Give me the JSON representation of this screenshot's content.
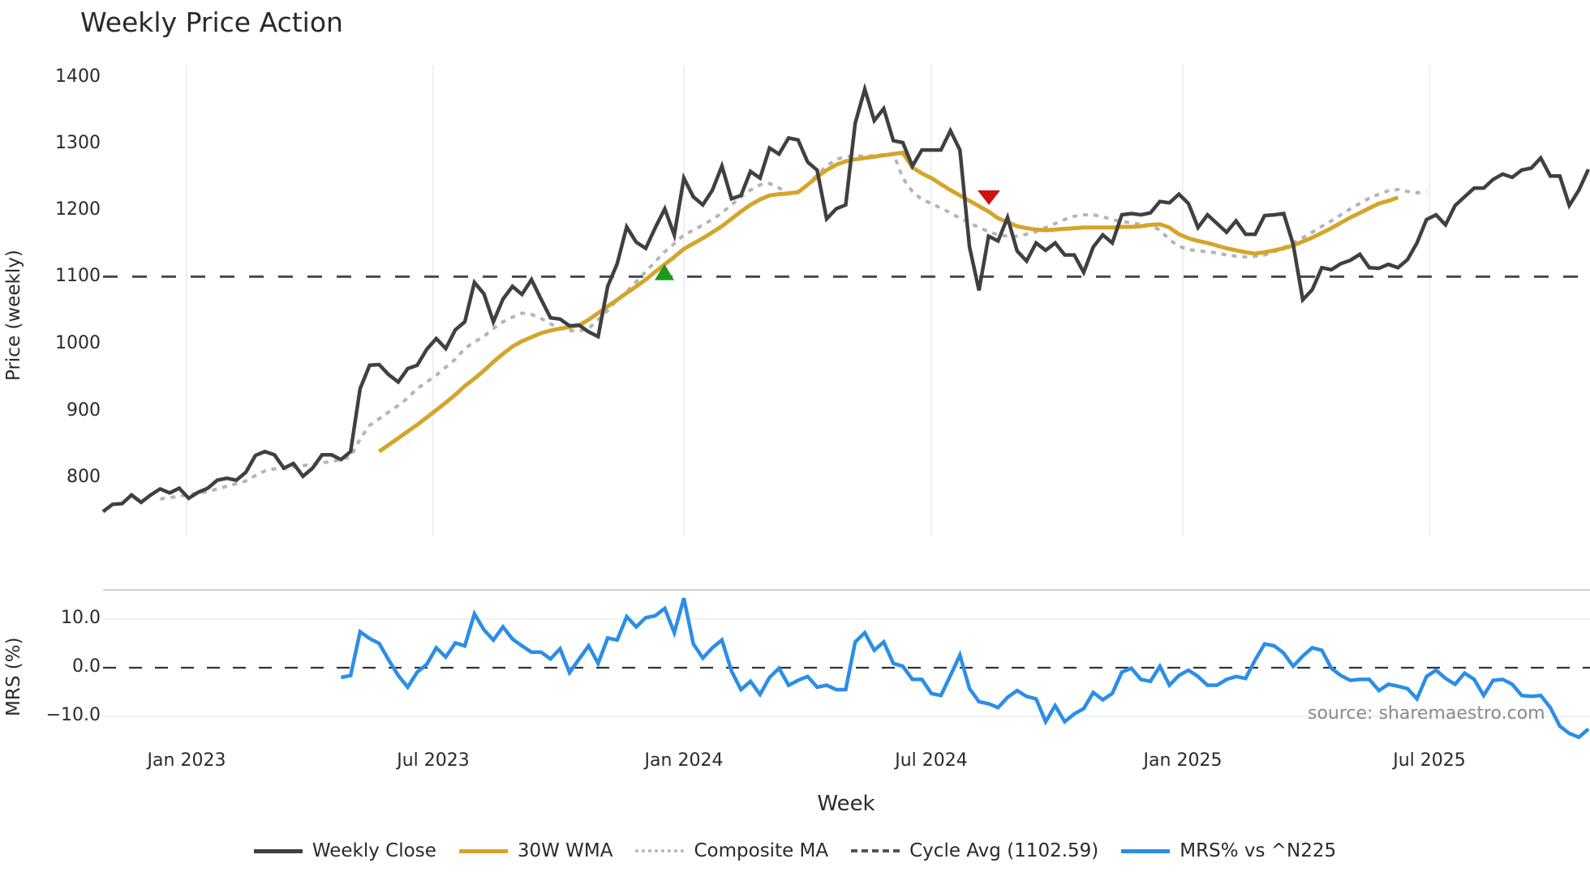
{
  "title": "Weekly Price Action",
  "price_panel": {
    "ylabel": "Price (weekly)",
    "y_ticks": [
      "1400",
      "1300",
      "1200",
      "1100",
      "1000",
      "900",
      "800"
    ]
  },
  "mrs_panel": {
    "ylabel": "MRS (%)",
    "y_ticks": [
      "10.0",
      "0.0",
      "−10.0"
    ]
  },
  "x_axis": {
    "label": "Week",
    "ticks": [
      "Jan 2023",
      "Jul 2023",
      "Jan 2024",
      "Jul 2024",
      "Jan 2025",
      "Jul 2025"
    ]
  },
  "source_note": "source: sharemaestro.com",
  "legend": [
    {
      "label": "Weekly Close",
      "color": "#404040",
      "style": "solid"
    },
    {
      "label": "30W WMA",
      "color": "#d4a52a",
      "style": "solid"
    },
    {
      "label": "Composite MA",
      "color": "#b5b5b5",
      "style": "dotted"
    },
    {
      "label": "Cycle Avg (1102.59)",
      "color": "#555555",
      "style": "dashed"
    },
    {
      "label": "MRS% vs ^N225",
      "color": "#2b8ee6",
      "style": "solid"
    }
  ],
  "colors": {
    "close": "#404040",
    "wma": "#d4a52a",
    "composite": "#b5b5b5",
    "cycle": "#4a4a4a",
    "mrs": "#2b8ee6",
    "buy_marker": "#1a9a1a",
    "sell_marker": "#cc1111",
    "grid": "#e8ecf0"
  },
  "chart_data": [
    {
      "type": "line",
      "title": "Weekly Price Action",
      "xlabel": "Week",
      "ylabel": "Price (weekly)",
      "ylim": [
        720,
        1420
      ],
      "x_range": [
        "2022-10",
        "2025-10"
      ],
      "x_ticks": [
        "Jan 2023",
        "Jul 2023",
        "Jan 2024",
        "Jul 2024",
        "Jan 2025",
        "Jul 2025"
      ],
      "y_ticks": [
        800,
        900,
        1000,
        1100,
        1200,
        1300,
        1400
      ],
      "grid": "vertical",
      "legend_position": "bottom",
      "series": [
        {
          "name": "Weekly Close",
          "values": [
            751,
            762,
            763,
            776,
            765,
            776,
            785,
            779,
            786,
            771,
            780,
            786,
            798,
            801,
            798,
            810,
            835,
            841,
            836,
            816,
            823,
            804,
            816,
            836,
            836,
            829,
            841,
            935,
            970,
            971,
            956,
            945,
            965,
            970,
            994,
            1010,
            995,
            1023,
            1035,
            1094,
            1077,
            1035,
            1069,
            1088,
            1076,
            1098,
            1069,
            1041,
            1039,
            1029,
            1030,
            1020,
            1013,
            1088,
            1122,
            1177,
            1154,
            1145,
            1176,
            1204,
            1165,
            1250,
            1222,
            1210,
            1232,
            1268,
            1219,
            1224,
            1260,
            1250,
            1295,
            1286,
            1310,
            1307,
            1274,
            1262,
            1189,
            1204,
            1210,
            1332,
            1383,
            1336,
            1354,
            1306,
            1303,
            1268,
            1292,
            1292,
            1292,
            1321,
            1292,
            1147,
            1082,
            1163,
            1156,
            1191,
            1141,
            1126,
            1153,
            1142,
            1153,
            1135,
            1135,
            1109,
            1147,
            1165,
            1153,
            1195,
            1197,
            1195,
            1198,
            1215,
            1213,
            1226,
            1212,
            1176,
            1195,
            1182,
            1169,
            1186,
            1166,
            1166,
            1194,
            1195,
            1197,
            1151,
            1068,
            1083,
            1116,
            1113,
            1122,
            1127,
            1136,
            1116,
            1115,
            1121,
            1116,
            1128,
            1153,
            1188,
            1195,
            1180,
            1209,
            1222,
            1235,
            1235,
            1248,
            1256,
            1251,
            1262,
            1265,
            1280,
            1253,
            1253,
            1209,
            1232,
            1263
          ]
        },
        {
          "name": "30W WMA",
          "start_index": 29,
          "values": [
            841,
            851,
            861,
            871,
            881,
            892,
            903,
            914,
            926,
            939,
            950,
            962,
            975,
            987,
            998,
            1006,
            1012,
            1018,
            1022,
            1025,
            1027,
            1030,
            1038,
            1048,
            1058,
            1068,
            1078,
            1088,
            1098,
            1110,
            1121,
            1132,
            1144,
            1152,
            1160,
            1169,
            1178,
            1189,
            1200,
            1210,
            1218,
            1224,
            1226,
            1227,
            1229,
            1240,
            1252,
            1262,
            1270,
            1275,
            1278,
            1280,
            1282,
            1284,
            1286,
            1288,
            1266,
            1257,
            1250,
            1241,
            1232,
            1224,
            1216,
            1208,
            1200,
            1190,
            1184,
            1178,
            1175,
            1173,
            1172,
            1173,
            1174,
            1175,
            1176,
            1176,
            1176,
            1176,
            1177,
            1177,
            1178,
            1180,
            1181,
            1176,
            1166,
            1160,
            1156,
            1153,
            1149,
            1145,
            1142,
            1139,
            1137,
            1139,
            1142,
            1145,
            1149,
            1155,
            1161,
            1168,
            1175,
            1183,
            1191,
            1198,
            1205,
            1212,
            1216,
            1221
          ]
        },
        {
          "name": "Composite MA",
          "start_index": 6,
          "values": [
            770,
            772,
            774,
            777,
            779,
            781,
            785,
            789,
            793,
            797,
            805,
            812,
            815,
            816,
            818,
            820,
            822,
            824,
            826,
            829,
            833,
            860,
            880,
            890,
            900,
            910,
            921,
            935,
            945,
            955,
            967,
            979,
            995,
            1005,
            1013,
            1025,
            1035,
            1042,
            1048,
            1046,
            1040,
            1032,
            1025,
            1022,
            1021,
            1025,
            1038,
            1052,
            1068,
            1080,
            1095,
            1110,
            1125,
            1140,
            1152,
            1165,
            1172,
            1180,
            1188,
            1198,
            1210,
            1222,
            1232,
            1240,
            1242,
            1235,
            1228,
            1228,
            1240,
            1255,
            1268,
            1278,
            1282,
            1283,
            1283,
            1283,
            1285,
            1287,
            1250,
            1230,
            1218,
            1212,
            1205,
            1198,
            1190,
            1183,
            1176,
            1170,
            1165,
            1163,
            1163,
            1166,
            1170,
            1176,
            1182,
            1188,
            1193,
            1195,
            1195,
            1192,
            1188,
            1185,
            1183,
            1181,
            1180,
            1172,
            1158,
            1148,
            1143,
            1141,
            1140,
            1138,
            1135,
            1133,
            1132,
            1133,
            1135,
            1140,
            1146,
            1153,
            1161,
            1169,
            1178,
            1186,
            1195,
            1204,
            1212,
            1220,
            1226,
            1231,
            1233,
            1230,
            1228,
            1230
          ]
        },
        {
          "name": "Cycle Avg (1102.59)",
          "values": [
            1102.59
          ]
        }
      ],
      "markers": [
        {
          "type": "buy",
          "shape": "triangle-up",
          "color": "#1a9a1a",
          "x_approx": "Dec 2023",
          "y": 1107
        },
        {
          "type": "sell",
          "shape": "triangle-down",
          "color": "#cc1111",
          "x_approx": "Aug 2024",
          "y": 1222
        }
      ]
    },
    {
      "type": "line",
      "title": "MRS% vs ^N225",
      "ylabel": "MRS (%)",
      "ylim": [
        -14,
        15
      ],
      "y_ticks": [
        -10,
        0,
        10
      ],
      "reference_line": 0,
      "series": [
        {
          "name": "MRS% vs ^N225",
          "start_index": 25,
          "values": [
            -2.0,
            -1.6,
            7.4,
            6.0,
            5.0,
            1.6,
            -1.6,
            -4.0,
            -0.9,
            0.7,
            4.1,
            2.2,
            5.1,
            4.5,
            11.1,
            7.8,
            5.7,
            8.4,
            5.9,
            4.5,
            3.2,
            3.2,
            1.8,
            3.9,
            -1.0,
            1.8,
            4.5,
            0.9,
            6.1,
            5.7,
            10.5,
            8.4,
            10.3,
            10.7,
            12.2,
            7.2,
            14.3,
            4.9,
            2.0,
            4.1,
            5.7,
            -0.7,
            -4.5,
            -2.8,
            -5.5,
            -2.0,
            -0.1,
            -3.6,
            -2.6,
            -1.8,
            -4.0,
            -3.6,
            -4.5,
            -4.5,
            5.3,
            7.2,
            3.6,
            5.3,
            0.9,
            0.3,
            -2.4,
            -2.4,
            -5.3,
            -5.7,
            -1.6,
            2.6,
            -4.3,
            -7.0,
            -7.4,
            -8.2,
            -6.1,
            -4.7,
            -5.9,
            -6.4,
            -11.1,
            -7.8,
            -11.1,
            -9.5,
            -8.4,
            -5.1,
            -6.6,
            -5.3,
            -0.9,
            -0.1,
            -2.4,
            -2.8,
            0.3,
            -3.6,
            -1.6,
            -0.5,
            -1.8,
            -3.6,
            -3.6,
            -2.4,
            -1.8,
            -2.2,
            1.6,
            4.9,
            4.5,
            3.0,
            0.3,
            2.4,
            4.1,
            3.6,
            -0.1,
            -1.6,
            -2.6,
            -2.4,
            -2.4,
            -4.7,
            -3.4,
            -3.8,
            -4.3,
            -6.4,
            -1.8,
            -0.5,
            -2.2,
            -3.4,
            -1.1,
            -2.4,
            -5.7,
            -2.6,
            -2.4,
            -3.4,
            -5.7,
            -5.9,
            -5.7,
            -8.2,
            -12.0,
            -13.5,
            -14.3,
            -12.6
          ]
        }
      ]
    }
  ]
}
